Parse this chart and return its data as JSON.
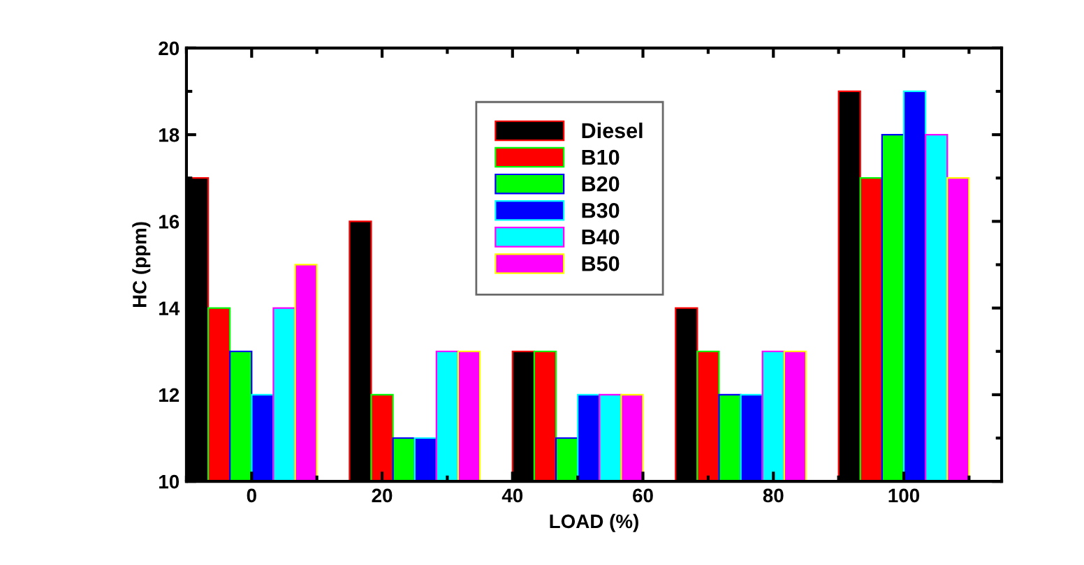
{
  "chart_data": {
    "type": "bar",
    "xlabel": "LOAD (%)",
    "ylabel": "HC (ppm)",
    "xlim": [
      -10,
      115
    ],
    "xticks": [
      0,
      20,
      40,
      60,
      80,
      100
    ],
    "ylim": [
      10,
      20
    ],
    "yticks": [
      10,
      12,
      14,
      16,
      18,
      20
    ],
    "grid": false,
    "legend": "top",
    "series": [
      {
        "name": "Diesel",
        "color": "#000000",
        "x": [
          -8.33,
          16.67,
          41.67,
          66.67,
          91.67
        ],
        "values": [
          17,
          16,
          13,
          14,
          19
        ]
      },
      {
        "name": "B10",
        "color": "#ff0000",
        "x": [
          -5,
          20,
          45,
          70,
          95
        ],
        "values": [
          14,
          12,
          13,
          13,
          17
        ]
      },
      {
        "name": "B20",
        "color": "#00ff00",
        "x": [
          -1.67,
          23.33,
          48.33,
          73.33,
          98.33
        ],
        "values": [
          13,
          11,
          11,
          12,
          18
        ]
      },
      {
        "name": "B30",
        "color": "#0000ff",
        "x": [
          1.67,
          26.67,
          51.67,
          76.67,
          101.67
        ],
        "values": [
          12,
          11,
          12,
          12,
          19
        ]
      },
      {
        "name": "B40",
        "color": "#00ffff",
        "x": [
          5,
          30,
          55,
          80,
          105
        ],
        "values": [
          14,
          13,
          12,
          13,
          18
        ]
      },
      {
        "name": "B50",
        "color": "#ff00ff",
        "x": [
          8.33,
          33.33,
          58.33,
          83.33,
          108.33
        ],
        "values": [
          15,
          13,
          12,
          13,
          17
        ]
      }
    ]
  }
}
